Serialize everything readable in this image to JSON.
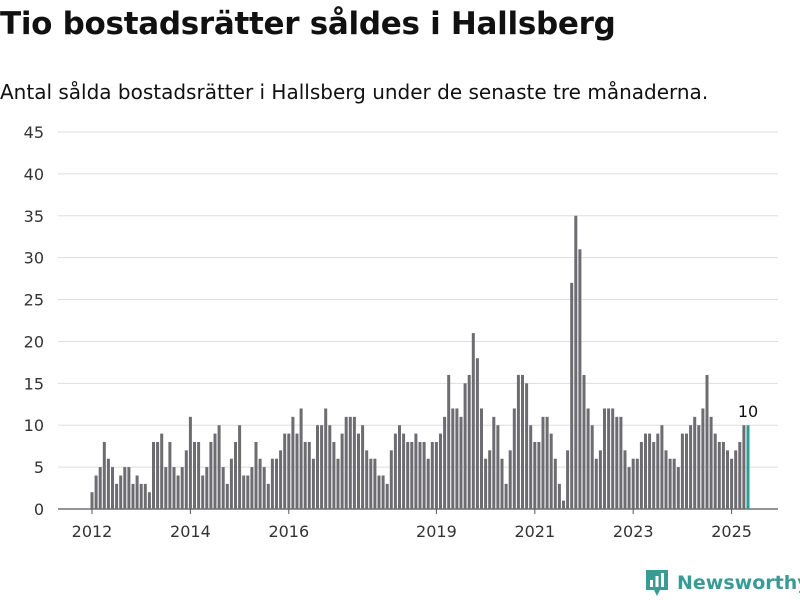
{
  "title": "Tio bostadsrätter såldes i Hallsberg",
  "subtitle": "Antal sålda bostadsrätter i Hallsberg under de senaste tre månaderna.",
  "brand": {
    "name": "Newsworthy",
    "color": "#3a9b95"
  },
  "chart_data": {
    "type": "bar",
    "x_start": "2012-01",
    "x_tick_labels": [
      "2012",
      "2014",
      "2016",
      "2019",
      "2021",
      "2023",
      "2025"
    ],
    "ylim": [
      0,
      45
    ],
    "y_ticks": [
      0,
      5,
      10,
      15,
      20,
      25,
      30,
      35,
      40,
      45
    ],
    "grid": true,
    "bar_color": "#6d6c71",
    "highlight_color": "#2a9d94",
    "values": [
      2,
      4,
      5,
      8,
      6,
      5,
      3,
      4,
      5,
      5,
      3,
      4,
      3,
      3,
      2,
      8,
      8,
      9,
      5,
      8,
      5,
      4,
      5,
      7,
      11,
      8,
      8,
      4,
      5,
      8,
      9,
      10,
      5,
      3,
      6,
      8,
      10,
      4,
      4,
      5,
      8,
      6,
      5,
      3,
      6,
      6,
      7,
      9,
      9,
      11,
      9,
      12,
      8,
      8,
      6,
      10,
      10,
      12,
      10,
      8,
      6,
      9,
      11,
      11,
      11,
      9,
      10,
      7,
      6,
      6,
      4,
      4,
      3,
      7,
      9,
      10,
      9,
      8,
      8,
      9,
      8,
      8,
      6,
      8,
      8,
      9,
      11,
      16,
      12,
      12,
      11,
      15,
      16,
      21,
      18,
      12,
      6,
      7,
      11,
      10,
      6,
      3,
      7,
      12,
      16,
      16,
      15,
      10,
      8,
      8,
      11,
      11,
      9,
      6,
      3,
      1,
      7,
      27,
      35,
      31,
      16,
      12,
      10,
      6,
      7,
      12,
      12,
      12,
      11,
      11,
      7,
      5,
      6,
      6,
      8,
      9,
      9,
      8,
      9,
      10,
      7,
      6,
      6,
      5,
      9,
      9,
      10,
      11,
      10,
      12,
      16,
      11,
      9,
      8,
      8,
      7,
      6,
      7,
      8,
      10,
      10
    ],
    "last_value_label": "10"
  }
}
